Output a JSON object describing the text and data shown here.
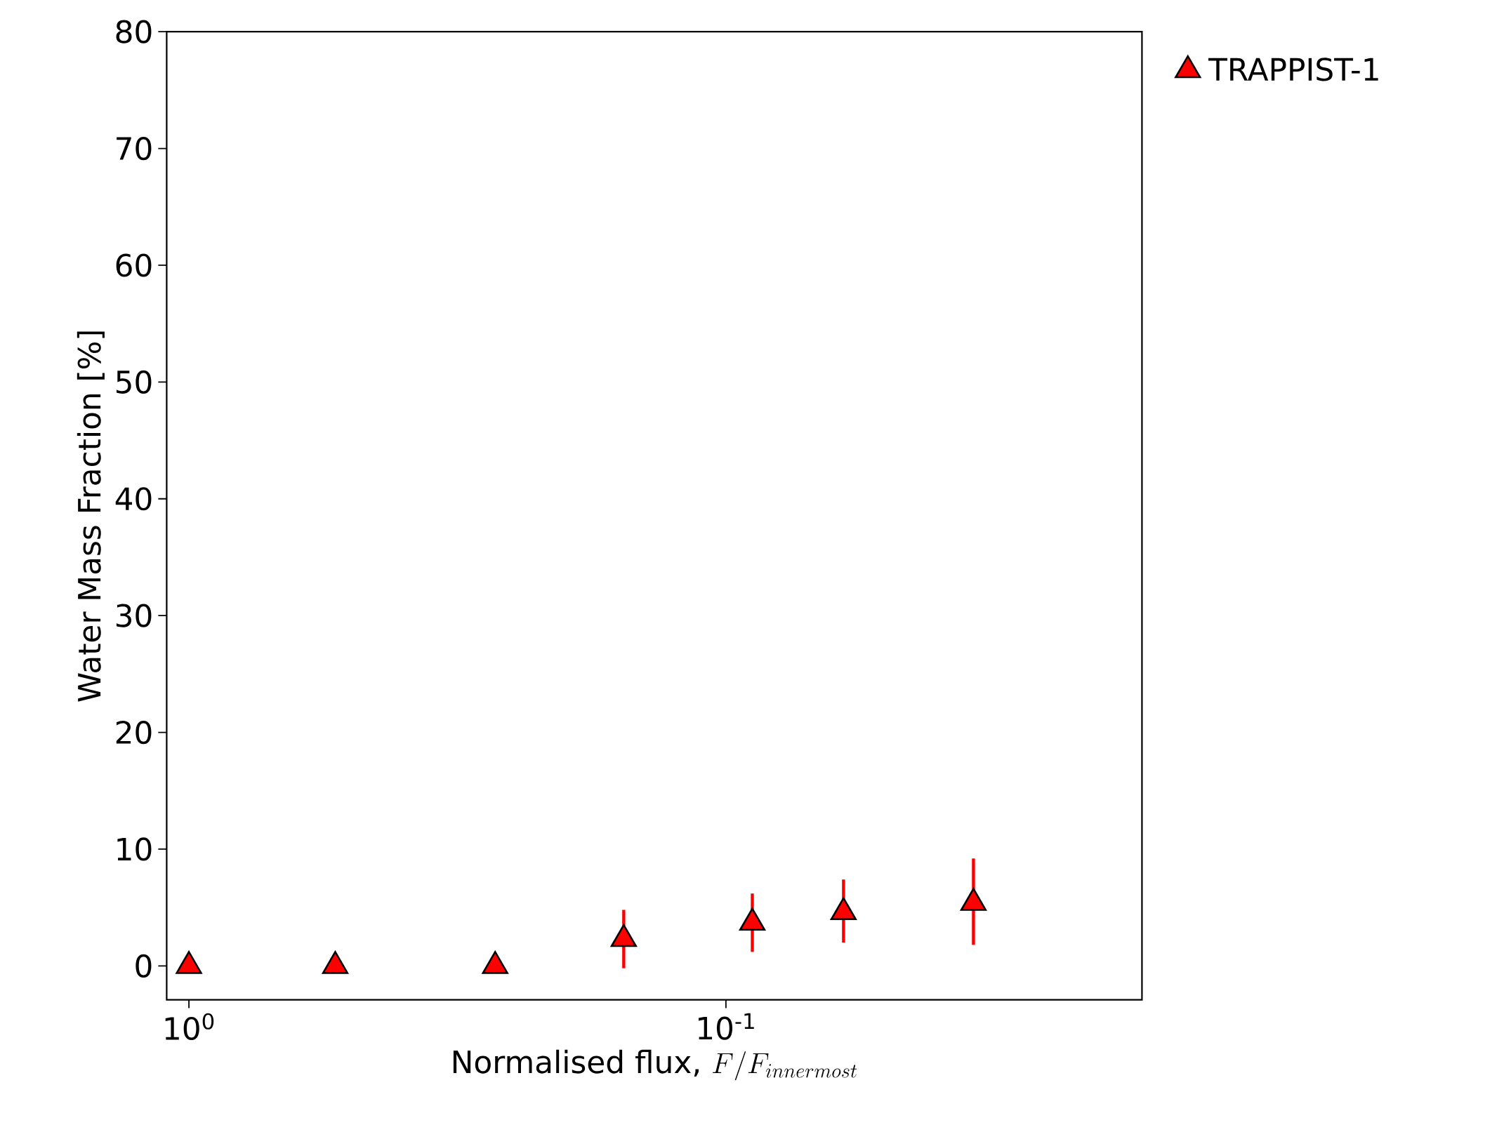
{
  "chart_data": {
    "type": "scatter",
    "xlabel": "\\mbox{Normalised flux, }F/F_{innermost}",
    "ylabel": "Water Mass Fraction [%]",
    "x": [
      1.0,
      0.534,
      0.269,
      0.155,
      0.0893,
      0.0604,
      0.0346
    ],
    "series": [
      {
        "name": "TRAPPIST-1",
        "color": "#ff0000",
        "values": [
          0,
          0,
          0,
          2.3,
          3.7,
          4.6,
          5.4
        ],
        "errors": [
          null,
          null,
          null,
          [
            -0.2,
            4.8
          ],
          [
            1.2,
            6.2
          ],
          [
            2.0,
            7.4
          ],
          [
            1.8,
            9.2
          ]
        ]
      }
    ],
    "log": "x",
    "marker": "triangle",
    "legend": "top right",
    "grid": false,
    "xlim": [
      1.1,
      0.0168
    ],
    "ylim": [
      -2.9,
      80
    ],
    "xticks": [
      {
        "value": 1,
        "label": "10$^{0}$"
      },
      {
        "value": 0.1,
        "label": "10$^{-1}$"
      }
    ],
    "yticks": [
      0,
      10,
      20,
      30,
      40,
      50,
      60,
      70,
      80
    ]
  }
}
